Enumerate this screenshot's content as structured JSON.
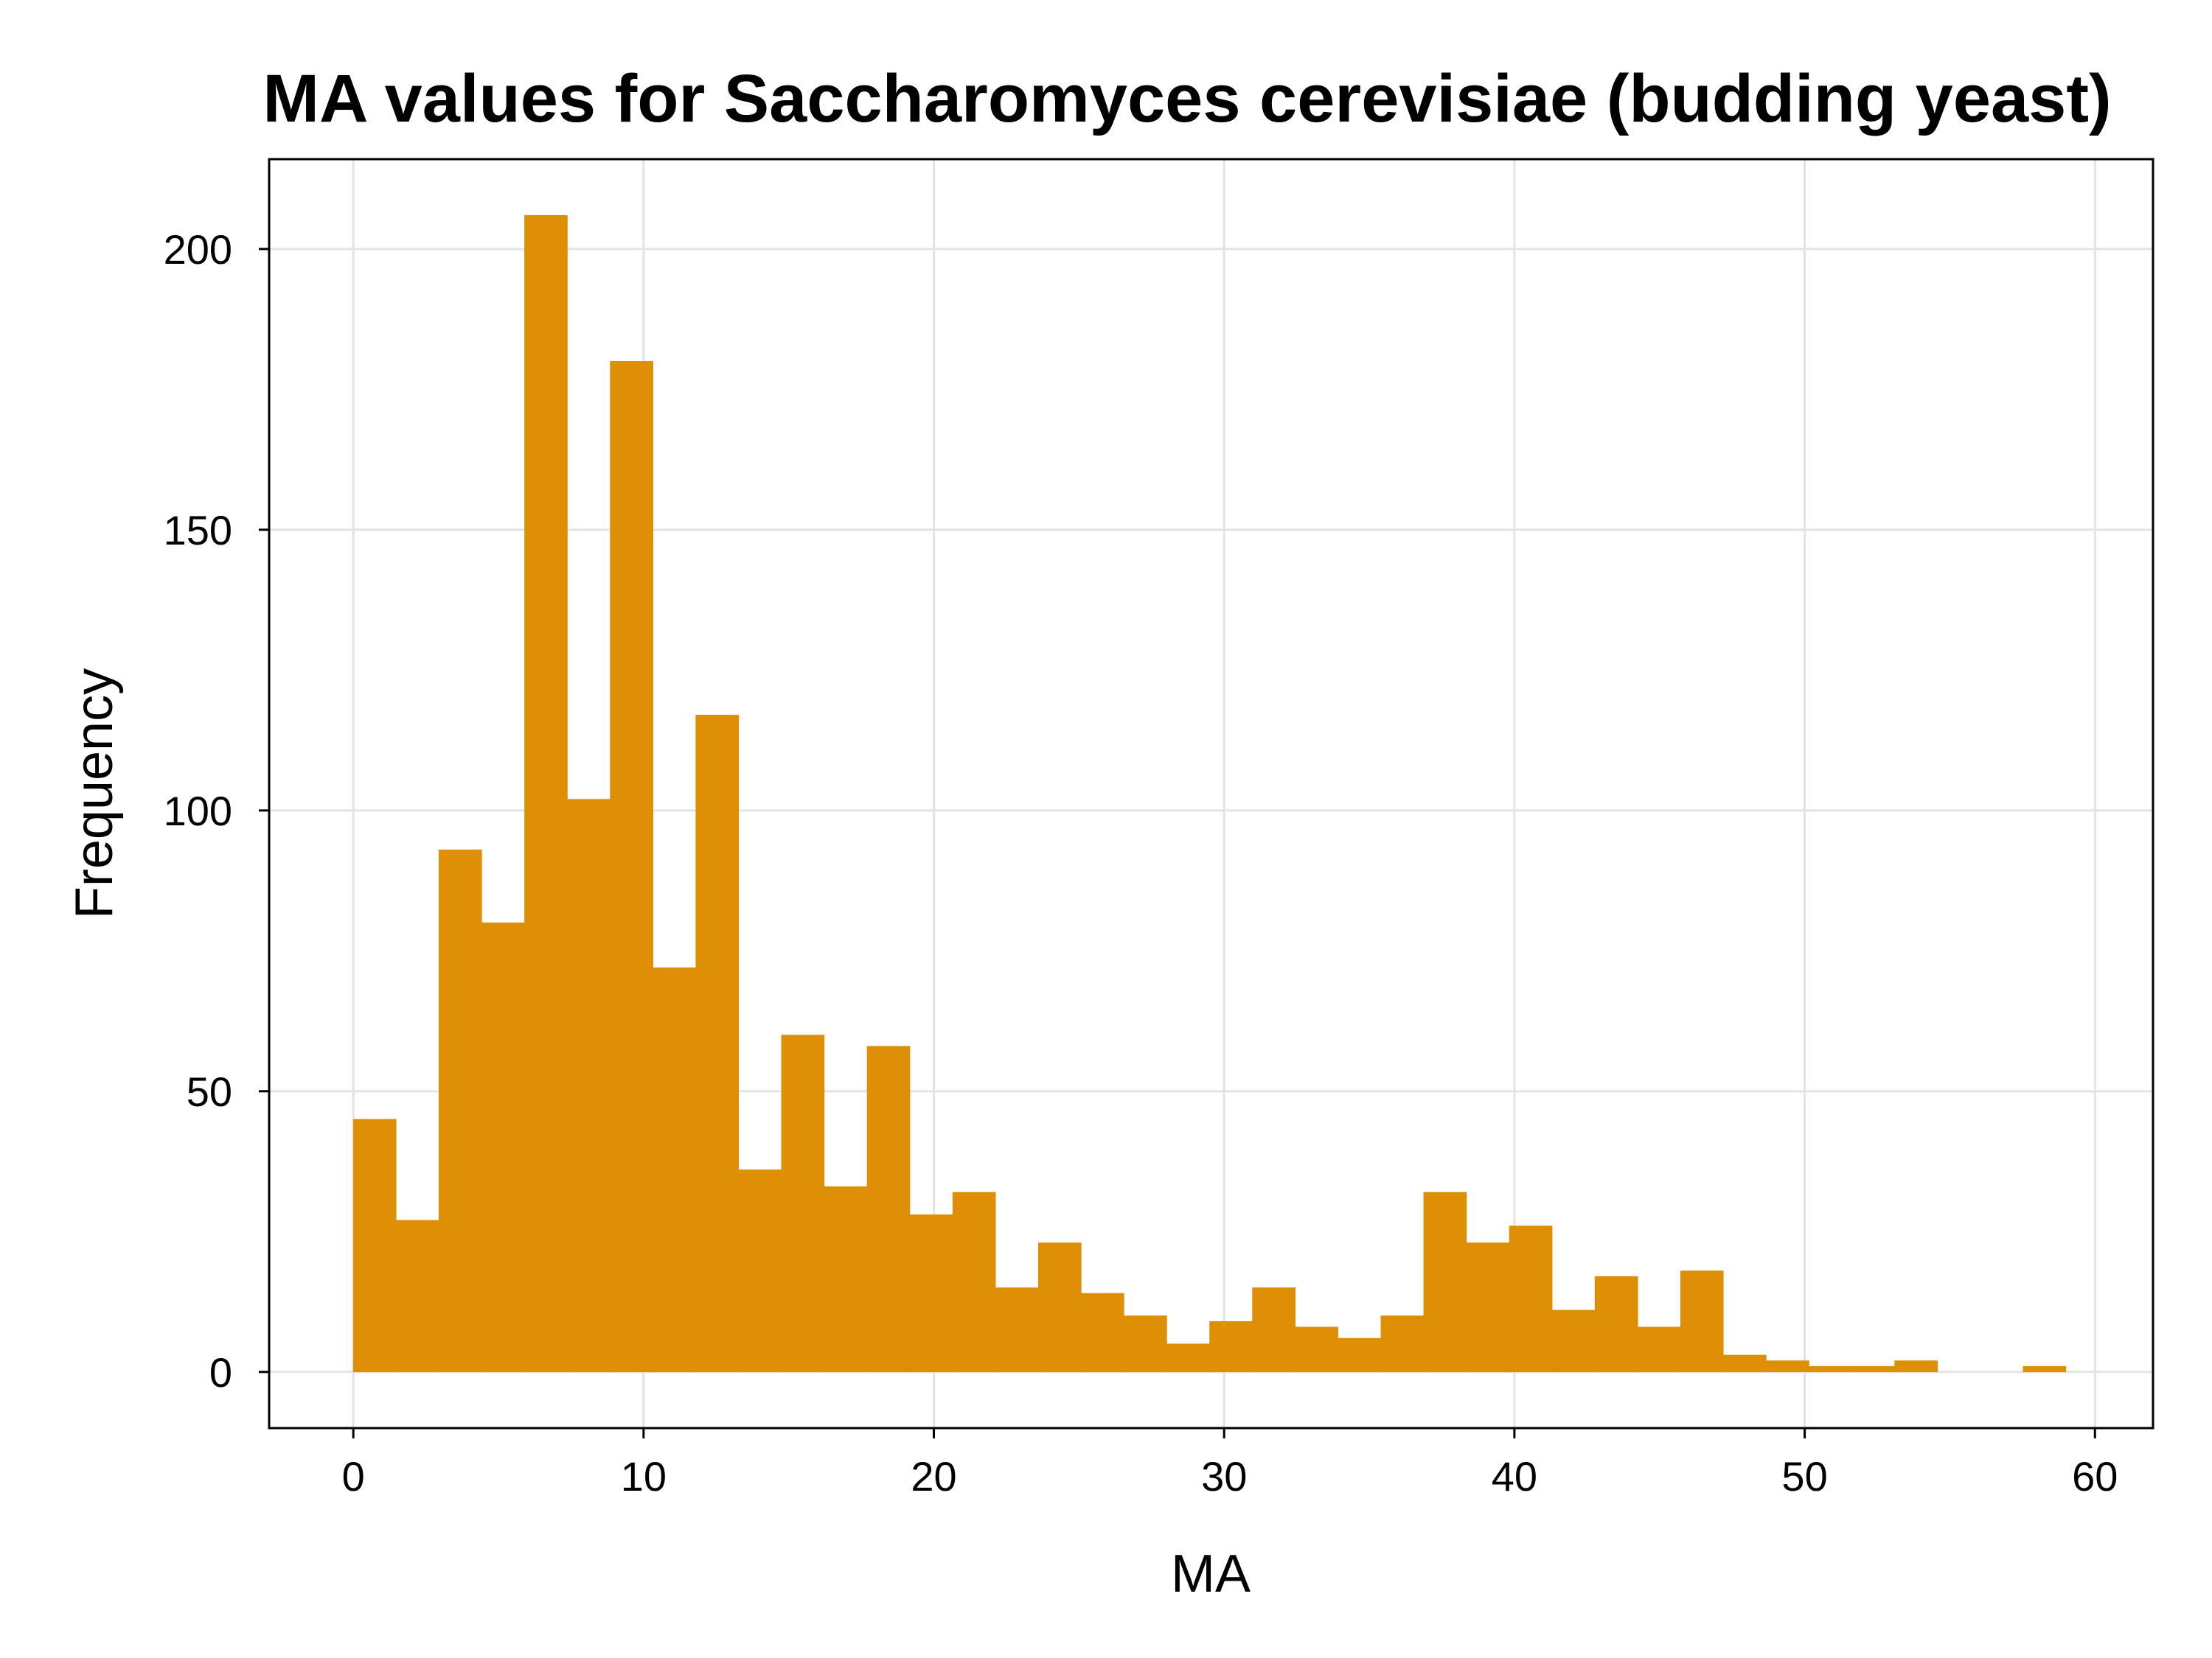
{
  "chart_data": {
    "type": "bar",
    "title": "MA values for Saccharomyces cerevisiae (budding yeast)",
    "xlabel": "MA",
    "ylabel": "Frequency",
    "bin_width": 1.475,
    "bin_start": 0,
    "values": [
      45,
      27,
      93,
      80,
      206,
      102,
      180,
      72,
      117,
      36,
      60,
      33,
      58,
      28,
      32,
      15,
      23,
      14,
      10,
      5,
      9,
      15,
      8,
      6,
      10,
      32,
      23,
      26,
      11,
      17,
      8,
      18,
      3,
      2,
      1,
      1,
      2,
      0,
      0,
      1
    ],
    "xlim": [
      -2.9,
      62.0
    ],
    "ylim": [
      -10,
      216
    ],
    "xticks": [
      0,
      10,
      20,
      30,
      40,
      50,
      60
    ],
    "yticks": [
      0,
      50,
      100,
      150,
      200
    ],
    "grid": true,
    "bar_color": "#de8f05",
    "grid_color": "#e3e3e3"
  }
}
